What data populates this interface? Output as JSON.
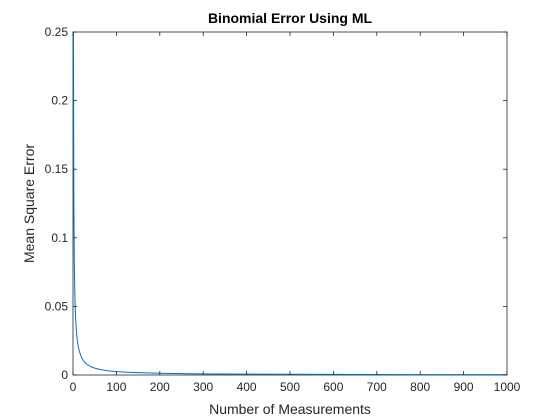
{
  "chart_data": {
    "type": "line",
    "title": "Binomial Error Using ML",
    "xlabel": "Number of Measurements",
    "ylabel": "Mean Square Error",
    "xlim": [
      0,
      1000
    ],
    "ylim": [
      0,
      0.25
    ],
    "xticks": [
      0,
      100,
      200,
      300,
      400,
      500,
      600,
      700,
      800,
      900,
      1000
    ],
    "yticks": [
      0,
      0.05,
      0.1,
      0.15,
      0.2,
      0.25
    ],
    "xtick_labels": [
      "0",
      "100",
      "200",
      "300",
      "400",
      "500",
      "600",
      "700",
      "800",
      "900",
      "1000"
    ],
    "ytick_labels": [
      "0",
      "0.05",
      "0.1",
      "0.15",
      "0.2",
      "0.25"
    ],
    "grid": false,
    "box": true,
    "series": [
      {
        "color": "#0072BD",
        "x": [
          1,
          2,
          3,
          4,
          5,
          6,
          8,
          10,
          12,
          15,
          20,
          25,
          30,
          40,
          50,
          60,
          70,
          80,
          100,
          120,
          150,
          200,
          250,
          300,
          400,
          500,
          600,
          700,
          800,
          900,
          1000
        ],
        "y": [
          0.25,
          0.125,
          0.083,
          0.062,
          0.05,
          0.042,
          0.031,
          0.025,
          0.021,
          0.017,
          0.0125,
          0.01,
          0.0083,
          0.0062,
          0.005,
          0.0042,
          0.0036,
          0.0031,
          0.0025,
          0.0021,
          0.0017,
          0.00125,
          0.001,
          0.00083,
          0.00062,
          0.0005,
          0.00042,
          0.00036,
          0.00031,
          0.00028,
          0.00025
        ]
      }
    ]
  }
}
